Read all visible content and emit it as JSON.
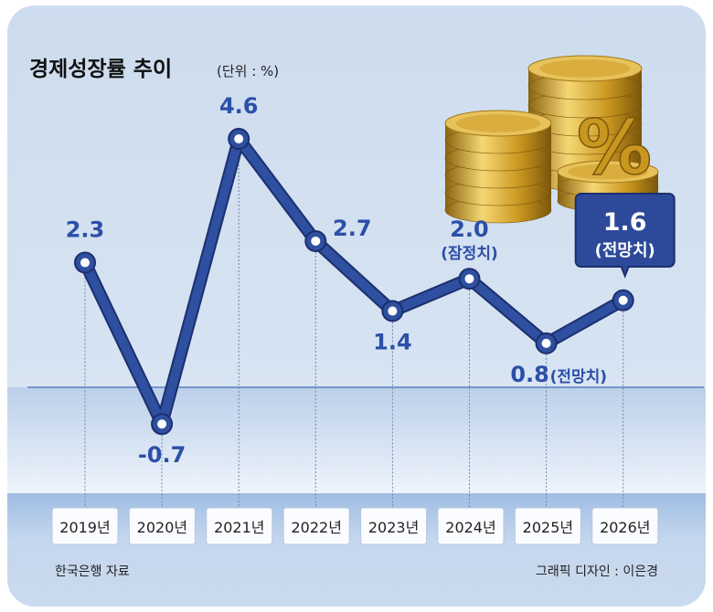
{
  "chart_data": {
    "type": "line",
    "title": "경제성장률 추이",
    "unit_label": "(단위 : %)",
    "categories": [
      "2019년",
      "2020년",
      "2021년",
      "2022년",
      "2023년",
      "2024년",
      "2025년",
      "2026년"
    ],
    "values": [
      2.3,
      -0.7,
      4.6,
      2.7,
      1.4,
      2.0,
      0.8,
      1.6
    ],
    "value_labels": [
      "2.3",
      "-0.7",
      "4.6",
      "2.7",
      "1.4",
      "2.0",
      "0.8",
      "1.6"
    ],
    "notes": {
      "5": "(잠정치)",
      "6": "(전망치)",
      "7": "(전망치)"
    },
    "ylim": [
      -1.1,
      5.2
    ],
    "grid": false,
    "line_color": "#2f4fa0",
    "label_color": "#2c4fa8",
    "callout_color": "#2d4a9a"
  },
  "footer": {
    "source": "한국은행 자료",
    "credit": "그래픽 디자인 : 이은경"
  }
}
